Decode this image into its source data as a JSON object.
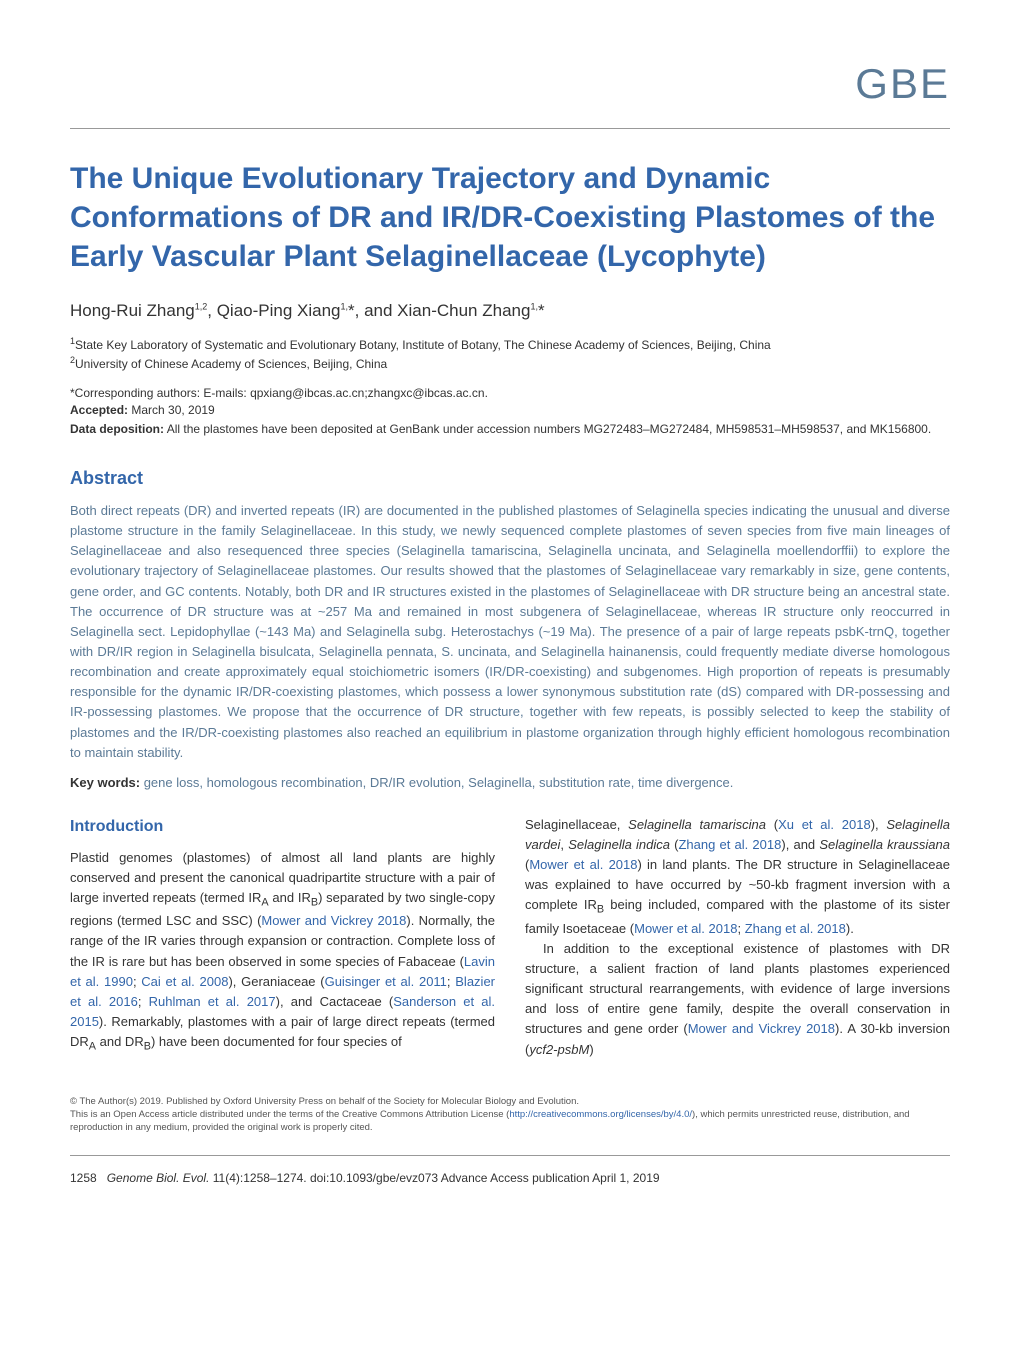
{
  "journal": {
    "logo": "GBE"
  },
  "article": {
    "title": "The Unique Evolutionary Trajectory and Dynamic Conformations of DR and IR/DR-Coexisting Plastomes of the Early Vascular Plant Selaginellaceae (Lycophyte)",
    "authors": "Hong-Rui Zhang",
    "authors_sup1": "1,2",
    "authors_2": ", Qiao-Ping Xiang",
    "authors_sup2": "1,",
    "authors_3": "*, and Xian-Chun Zhang",
    "authors_sup3": "1,",
    "authors_4": "*",
    "affiliation1_sup": "1",
    "affiliation1": "State Key Laboratory of Systematic and Evolutionary Botany, Institute of Botany, The Chinese Academy of Sciences, Beijing, China",
    "affiliation2_sup": "2",
    "affiliation2": "University of Chinese Academy of Sciences, Beijing, China",
    "corresponding": "*Corresponding authors: E-mails: qpxiang@ibcas.ac.cn;zhangxc@ibcas.ac.cn.",
    "accepted_label": "Accepted:",
    "accepted_date": " March 30, 2019",
    "data_deposition_label": "Data deposition:",
    "data_deposition_text": " All the plastomes have been deposited at GenBank under accession numbers MG272483–MG272484, MH598531–MH598537, and MK156800."
  },
  "abstract": {
    "heading": "Abstract",
    "text": "Both direct repeats (DR) and inverted repeats (IR) are documented in the published plastomes of Selaginella species indicating the unusual and diverse plastome structure in the family Selaginellaceae. In this study, we newly sequenced complete plastomes of seven species from five main lineages of Selaginellaceae and also resequenced three species (Selaginella tamariscina, Selaginella uncinata, and Selaginella moellendorffii) to explore the evolutionary trajectory of Selaginellaceae plastomes. Our results showed that the plastomes of Selaginellaceae vary remarkably in size, gene contents, gene order, and GC contents. Notably, both DR and IR structures existed in the plastomes of Selaginellaceae with DR structure being an ancestral state. The occurrence of DR structure was at ~257 Ma and remained in most subgenera of Selaginellaceae, whereas IR structure only reoccurred in Selaginella sect. Lepidophyllae (~143 Ma) and Selaginella subg. Heterostachys (~19 Ma). The presence of a pair of large repeats psbK-trnQ, together with DR/IR region in Selaginella bisulcata, Selaginella pennata, S. uncinata, and Selaginella hainanensis, could frequently mediate diverse homologous recombination and create approximately equal stoichiometric isomers (IR/DR-coexisting) and subgenomes. High proportion of repeats is presumably responsible for the dynamic IR/DR-coexisting plastomes, which possess a lower synonymous substitution rate (dS) compared with DR-possessing and IR-possessing plastomes. We propose that the occurrence of DR structure, together with few repeats, is possibly selected to keep the stability of plastomes and the IR/DR-coexisting plastomes also reached an equilibrium in plastome organization through highly efficient homologous recombination to maintain stability.",
    "keywords_label": "Key words:",
    "keywords_text": " gene loss, homologous recombination, DR/IR evolution, Selaginella, substitution rate, time divergence."
  },
  "introduction": {
    "heading": "Introduction",
    "col1_p1": "Plastid genomes (plastomes) of almost all land plants are highly conserved and present the canonical quadripartite structure with a pair of large inverted repeats (termed IR",
    "col1_p1_sub1": "A",
    "col1_p1_2": " and IR",
    "col1_p1_sub2": "B",
    "col1_p1_3": ") separated by two single-copy regions (termed LSC and SSC) (",
    "col1_cite1": "Mower and Vickrey 2018",
    "col1_p1_4": "). Normally, the range of the IR varies through expansion or contraction. Complete loss of the IR is rare but has been observed in some species of Fabaceae (",
    "col1_cite2": "Lavin et al. 1990",
    "col1_p1_5": "; ",
    "col1_cite3": "Cai et al. 2008",
    "col1_p1_6": "), Geraniaceae (",
    "col1_cite4": "Guisinger et al. 2011",
    "col1_p1_7": "; ",
    "col1_cite5": "Blazier et al. 2016",
    "col1_p1_8": "; ",
    "col1_cite6": "Ruhlman et al. 2017",
    "col1_p1_9": "), and Cactaceae (",
    "col1_cite7": "Sanderson et al. 2015",
    "col1_p1_10": "). Remarkably, plastomes with a pair of large direct repeats (termed DR",
    "col1_p1_sub3": "A",
    "col1_p1_11": " and DR",
    "col1_p1_sub4": "B",
    "col1_p1_12": ") have been documented for four species of",
    "col2_p1": "Selaginellaceae, ",
    "col2_italic1": "Selaginella tamariscina",
    "col2_p1_2": " (",
    "col2_cite1": "Xu et al. 2018",
    "col2_p1_3": "), ",
    "col2_italic2": "Selaginella vardei",
    "col2_p1_4": ", ",
    "col2_italic3": "Selaginella indica",
    "col2_p1_5": " (",
    "col2_cite2": "Zhang et al. 2018",
    "col2_p1_6": "), and ",
    "col2_italic4": "Selaginella kraussiana",
    "col2_p1_7": " (",
    "col2_cite3": "Mower et al. 2018",
    "col2_p1_8": ") in land plants. The DR structure in Selaginellaceae was explained to have occurred by ~50-kb fragment inversion with a complete IR",
    "col2_p1_sub1": "B",
    "col2_p1_9": " being included, compared with the plastome of its sister family Isoetaceae (",
    "col2_cite4": "Mower et al. 2018",
    "col2_p1_10": "; ",
    "col2_cite5": "Zhang et al. 2018",
    "col2_p1_11": ").",
    "col2_p2": "In addition to the exceptional existence of plastomes with DR structure, a salient fraction of land plants plastomes experienced significant structural rearrangements, with evidence of large inversions and loss of entire gene family, despite the overall conservation in structures and gene order (",
    "col2_cite6": "Mower and Vickrey 2018",
    "col2_p2_2": "). A 30-kb inversion (",
    "col2_italic5": "ycf2-psbM",
    "col2_p2_3": ")"
  },
  "copyright": {
    "line1": "© The Author(s) 2019. Published by Oxford University Press on behalf of the Society for Molecular Biology and Evolution.",
    "line2": "This is an Open Access article distributed under the terms of the Creative Commons Attribution License (",
    "link": "http://creativecommons.org/licenses/by/4.0/",
    "line3": "), which permits unrestricted reuse, distribution, and reproduction in any medium, provided the original work is properly cited."
  },
  "footer": {
    "page_number": "1258",
    "journal_italic": "Genome Biol. Evol.",
    "citation": " 11(4):1258–1274.  doi:10.1093/gbe/evz073  Advance Access publication April 1, 2019"
  },
  "colors": {
    "heading_blue": "#3366aa",
    "logo_blue": "#5b7a96",
    "abstract_blue": "#5b7a96",
    "text_dark": "#333333",
    "divider_gray": "#999999"
  },
  "typography": {
    "title_size": 30,
    "logo_size": 42,
    "heading_size": 18,
    "body_size": 13,
    "affiliation_size": 12,
    "copyright_size": 9.5
  }
}
